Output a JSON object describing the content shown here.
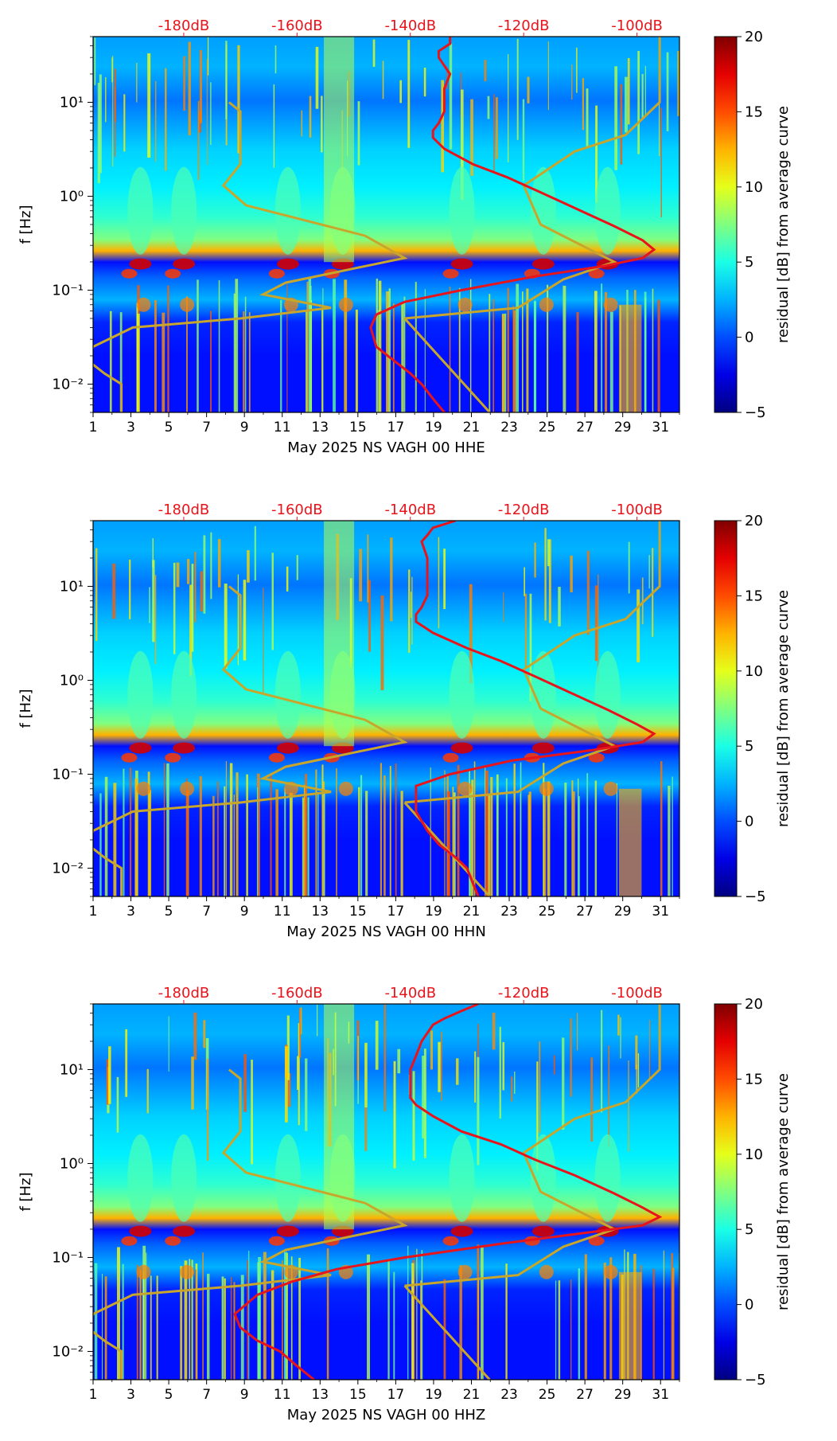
{
  "chart_data": [
    {
      "type": "heatmap",
      "station_label": "May 2025 NS VAGH 00 HHE",
      "xlabel": "May 2025 NS VAGH 00 HHE",
      "ylabel": "f [Hz]",
      "colorbar_label": "residual [dB] from average curve",
      "colorbar_range": [
        -5,
        20
      ],
      "colorbar_ticks": [
        "20",
        "15",
        "10",
        "5",
        "0",
        "−5"
      ],
      "x_ticks": [
        "1",
        "3",
        "5",
        "7",
        "9",
        "11",
        "13",
        "15",
        "17",
        "19",
        "21",
        "23",
        "25",
        "27",
        "29",
        "31"
      ],
      "y_ticks": [
        "10¹",
        "10⁰",
        "10⁻¹",
        "10⁻²"
      ],
      "top_axis_ticks": [
        "-180dB",
        "-160dB",
        "-140dB",
        "-120dB",
        "-100dB"
      ],
      "xlim_day": [
        1,
        32
      ],
      "ylim_hz": [
        0.005,
        50
      ],
      "psd_curve_red": [
        [
          -133,
          50
        ],
        [
          -133,
          42
        ],
        [
          -135,
          35
        ],
        [
          -135,
          30
        ],
        [
          -133,
          20
        ],
        [
          -134,
          14
        ],
        [
          -134,
          10
        ],
        [
          -134,
          8
        ],
        [
          -135,
          6
        ],
        [
          -136,
          5
        ],
        [
          -136,
          4.2
        ],
        [
          -134,
          3.2
        ],
        [
          -129,
          2.2
        ],
        [
          -123,
          1.6
        ],
        [
          -117,
          1.1
        ],
        [
          -111,
          0.75
        ],
        [
          -104,
          0.48
        ],
        [
          -99,
          0.34
        ],
        [
          -97,
          0.27
        ],
        [
          -99,
          0.22
        ],
        [
          -106,
          0.18
        ],
        [
          -118,
          0.14
        ],
        [
          -131,
          0.1
        ],
        [
          -141,
          0.075
        ],
        [
          -146,
          0.055
        ],
        [
          -147,
          0.04
        ],
        [
          -146,
          0.025
        ],
        [
          -143,
          0.018
        ],
        [
          -140,
          0.013
        ],
        [
          -138,
          0.01
        ],
        [
          -136,
          0.007
        ],
        [
          -134,
          0.005
        ]
      ],
      "noise_model_gold": [
        [
          -172,
          10
        ],
        [
          -170,
          8
        ],
        [
          -170,
          4
        ],
        [
          -170,
          2.2
        ],
        [
          -173,
          1.3
        ],
        [
          -169,
          0.8
        ],
        [
          -148,
          0.38
        ],
        [
          -141,
          0.22
        ],
        [
          -150,
          0.17
        ],
        [
          -162,
          0.12
        ],
        [
          -166,
          0.09
        ],
        [
          -154,
          0.065
        ],
        [
          -170,
          0.05
        ],
        [
          -189,
          0.04
        ],
        [
          -196,
          0.025
        ],
        [
          -197,
          0.018
        ],
        [
          -194,
          0.013
        ],
        [
          -191,
          0.01
        ],
        [
          -191,
          0.005
        ]
      ],
      "noise_model_gold_high": [
        [
          -141,
          0.05
        ],
        [
          -121,
          0.065
        ],
        [
          -113,
          0.13
        ],
        [
          -104,
          0.2
        ],
        [
          -117,
          0.5
        ],
        [
          -120,
          1.3
        ],
        [
          -111,
          3
        ],
        [
          -102,
          4.5
        ],
        [
          -96,
          10
        ],
        [
          -96,
          50
        ]
      ],
      "noise_model_gold_diag": [
        [
          -141,
          0.05
        ],
        [
          -126,
          0.005
        ]
      ]
    },
    {
      "type": "heatmap",
      "station_label": "May 2025 NS VAGH 00 HHN",
      "xlabel": "May 2025 NS VAGH 00 HHN",
      "ylabel": "f [Hz]",
      "colorbar_label": "residual [dB] from average curve",
      "colorbar_range": [
        -5,
        20
      ],
      "colorbar_ticks": [
        "20",
        "15",
        "10",
        "5",
        "0",
        "−5"
      ],
      "x_ticks": [
        "1",
        "3",
        "5",
        "7",
        "9",
        "11",
        "13",
        "15",
        "17",
        "19",
        "21",
        "23",
        "25",
        "27",
        "29",
        "31"
      ],
      "y_ticks": [
        "10¹",
        "10⁰",
        "10⁻¹",
        "10⁻²"
      ],
      "top_axis_ticks": [
        "-180dB",
        "-160dB",
        "-140dB",
        "-120dB",
        "-100dB"
      ],
      "xlim_day": [
        1,
        32
      ],
      "ylim_hz": [
        0.005,
        50
      ],
      "psd_curve_red": [
        [
          -132,
          50
        ],
        [
          -136,
          42
        ],
        [
          -137,
          35
        ],
        [
          -138,
          30
        ],
        [
          -137,
          20
        ],
        [
          -137,
          14
        ],
        [
          -137,
          10
        ],
        [
          -137,
          8
        ],
        [
          -138,
          6
        ],
        [
          -139,
          5
        ],
        [
          -139,
          4.2
        ],
        [
          -136,
          3.2
        ],
        [
          -130,
          2.2
        ],
        [
          -124,
          1.6
        ],
        [
          -118,
          1.1
        ],
        [
          -112,
          0.75
        ],
        [
          -105,
          0.48
        ],
        [
          -100,
          0.34
        ],
        [
          -97,
          0.27
        ],
        [
          -99,
          0.22
        ],
        [
          -108,
          0.18
        ],
        [
          -122,
          0.14
        ],
        [
          -133,
          0.1
        ],
        [
          -139,
          0.075
        ],
        [
          -139,
          0.055
        ],
        [
          -139,
          0.04
        ],
        [
          -137,
          0.025
        ],
        [
          -135,
          0.018
        ],
        [
          -132,
          0.013
        ],
        [
          -130,
          0.01
        ],
        [
          -129,
          0.007
        ],
        [
          -128,
          0.005
        ]
      ],
      "noise_model_gold": [
        [
          -172,
          10
        ],
        [
          -170,
          8
        ],
        [
          -170,
          4
        ],
        [
          -170,
          2.2
        ],
        [
          -173,
          1.3
        ],
        [
          -169,
          0.8
        ],
        [
          -148,
          0.38
        ],
        [
          -141,
          0.22
        ],
        [
          -150,
          0.17
        ],
        [
          -162,
          0.12
        ],
        [
          -166,
          0.09
        ],
        [
          -154,
          0.065
        ],
        [
          -170,
          0.05
        ],
        [
          -189,
          0.04
        ],
        [
          -196,
          0.025
        ],
        [
          -197,
          0.018
        ],
        [
          -194,
          0.013
        ],
        [
          -191,
          0.01
        ],
        [
          -191,
          0.005
        ]
      ],
      "noise_model_gold_high": [
        [
          -141,
          0.05
        ],
        [
          -121,
          0.065
        ],
        [
          -113,
          0.13
        ],
        [
          -104,
          0.2
        ],
        [
          -117,
          0.5
        ],
        [
          -120,
          1.3
        ],
        [
          -111,
          3
        ],
        [
          -102,
          4.5
        ],
        [
          -96,
          10
        ],
        [
          -96,
          50
        ]
      ],
      "noise_model_gold_diag": [
        [
          -141,
          0.05
        ],
        [
          -126,
          0.005
        ]
      ]
    },
    {
      "type": "heatmap",
      "station_label": "May 2025 NS VAGH 00 HHZ",
      "xlabel": "May 2025 NS VAGH 00 HHZ",
      "ylabel": "f [Hz]",
      "colorbar_label": "residual [dB] from average curve",
      "colorbar_range": [
        -5,
        20
      ],
      "colorbar_ticks": [
        "20",
        "15",
        "10",
        "5",
        "0",
        "−5"
      ],
      "x_ticks": [
        "1",
        "3",
        "5",
        "7",
        "9",
        "11",
        "13",
        "15",
        "17",
        "19",
        "21",
        "23",
        "25",
        "27",
        "29",
        "31"
      ],
      "y_ticks": [
        "10¹",
        "10⁰",
        "10⁻¹",
        "10⁻²"
      ],
      "top_axis_ticks": [
        "-180dB",
        "-160dB",
        "-140dB",
        "-120dB",
        "-100dB"
      ],
      "xlim_day": [
        1,
        32
      ],
      "ylim_hz": [
        0.005,
        50
      ],
      "psd_curve_red": [
        [
          -128,
          50
        ],
        [
          -131,
          42
        ],
        [
          -134,
          35
        ],
        [
          -136,
          30
        ],
        [
          -138,
          20
        ],
        [
          -139,
          14
        ],
        [
          -140,
          10
        ],
        [
          -140,
          8
        ],
        [
          -140,
          6
        ],
        [
          -140,
          5
        ],
        [
          -139,
          4.2
        ],
        [
          -136,
          3.2
        ],
        [
          -131,
          2.2
        ],
        [
          -124,
          1.6
        ],
        [
          -118,
          1.1
        ],
        [
          -111,
          0.75
        ],
        [
          -104,
          0.48
        ],
        [
          -99,
          0.34
        ],
        [
          -96,
          0.27
        ],
        [
          -99,
          0.22
        ],
        [
          -110,
          0.18
        ],
        [
          -124,
          0.14
        ],
        [
          -141,
          0.1
        ],
        [
          -153,
          0.075
        ],
        [
          -161,
          0.055
        ],
        [
          -167,
          0.04
        ],
        [
          -171,
          0.025
        ],
        [
          -170,
          0.018
        ],
        [
          -167,
          0.013
        ],
        [
          -163,
          0.01
        ],
        [
          -160,
          0.007
        ],
        [
          -157,
          0.005
        ]
      ],
      "noise_model_gold": [
        [
          -172,
          10
        ],
        [
          -170,
          8
        ],
        [
          -170,
          4
        ],
        [
          -170,
          2.2
        ],
        [
          -173,
          1.3
        ],
        [
          -169,
          0.8
        ],
        [
          -148,
          0.38
        ],
        [
          -141,
          0.22
        ],
        [
          -150,
          0.17
        ],
        [
          -162,
          0.12
        ],
        [
          -166,
          0.09
        ],
        [
          -154,
          0.065
        ],
        [
          -170,
          0.05
        ],
        [
          -189,
          0.04
        ],
        [
          -196,
          0.025
        ],
        [
          -197,
          0.018
        ],
        [
          -194,
          0.013
        ],
        [
          -191,
          0.01
        ],
        [
          -191,
          0.005
        ]
      ],
      "noise_model_gold_high": [
        [
          -141,
          0.05
        ],
        [
          -121,
          0.065
        ],
        [
          -113,
          0.13
        ],
        [
          -104,
          0.2
        ],
        [
          -117,
          0.5
        ],
        [
          -120,
          1.3
        ],
        [
          -111,
          3
        ],
        [
          -102,
          4.5
        ],
        [
          -96,
          10
        ],
        [
          -96,
          50
        ]
      ],
      "noise_model_gold_diag": [
        [
          -141,
          0.05
        ],
        [
          -126,
          0.005
        ]
      ]
    }
  ],
  "colors": {
    "psd_curve": "#e8141b",
    "noise_model": "#c8a62b",
    "top_ticks": "#e8141b",
    "background": "#0b1a8c"
  }
}
